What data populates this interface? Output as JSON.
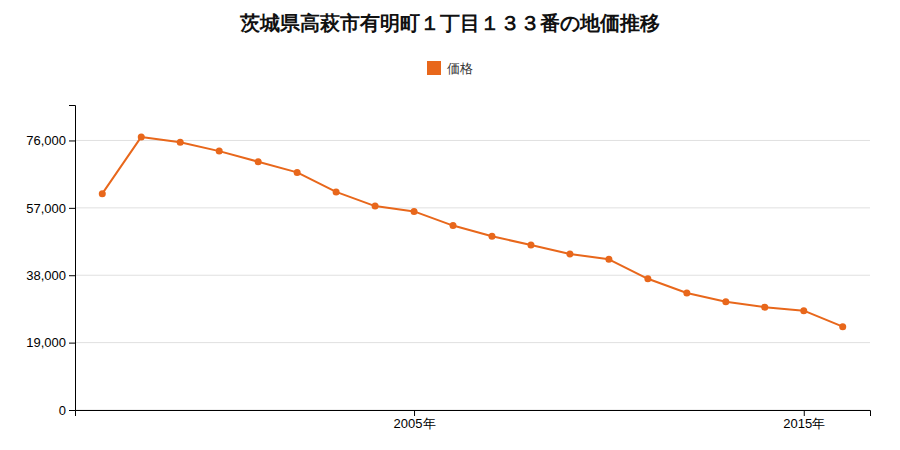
{
  "chart_data": {
    "type": "line",
    "title": "茨城県高萩市有明町１丁目１３３番の地価推移",
    "x": [
      1997,
      1998,
      1999,
      2000,
      2001,
      2002,
      2003,
      2004,
      2005,
      2006,
      2007,
      2008,
      2009,
      2010,
      2011,
      2012,
      2013,
      2014,
      2015,
      2016
    ],
    "series": [
      {
        "name": "価格",
        "color": "#e8671b",
        "marker": "circle",
        "line_style": "solid",
        "values": [
          61000,
          77000,
          75500,
          73000,
          70000,
          67000,
          61500,
          57500,
          56000,
          52000,
          49000,
          46500,
          44000,
          42500,
          37000,
          33000,
          30500,
          29000,
          28000,
          23500
        ]
      }
    ],
    "xlim": [
      1996.3,
      2016.7
    ],
    "xticks": [
      {
        "value": 2005,
        "label": "2005年"
      },
      {
        "value": 2015,
        "label": "2015年"
      }
    ],
    "ylim": [
      0,
      86000
    ],
    "yticks": [
      0,
      {
        "value": 19000,
        "label": "19,000"
      },
      {
        "value": 38000,
        "label": "38,000"
      },
      {
        "value": 57000,
        "label": "57,000"
      },
      {
        "value": 76000,
        "label": "76,000"
      }
    ],
    "grid": true,
    "legend": "top"
  }
}
